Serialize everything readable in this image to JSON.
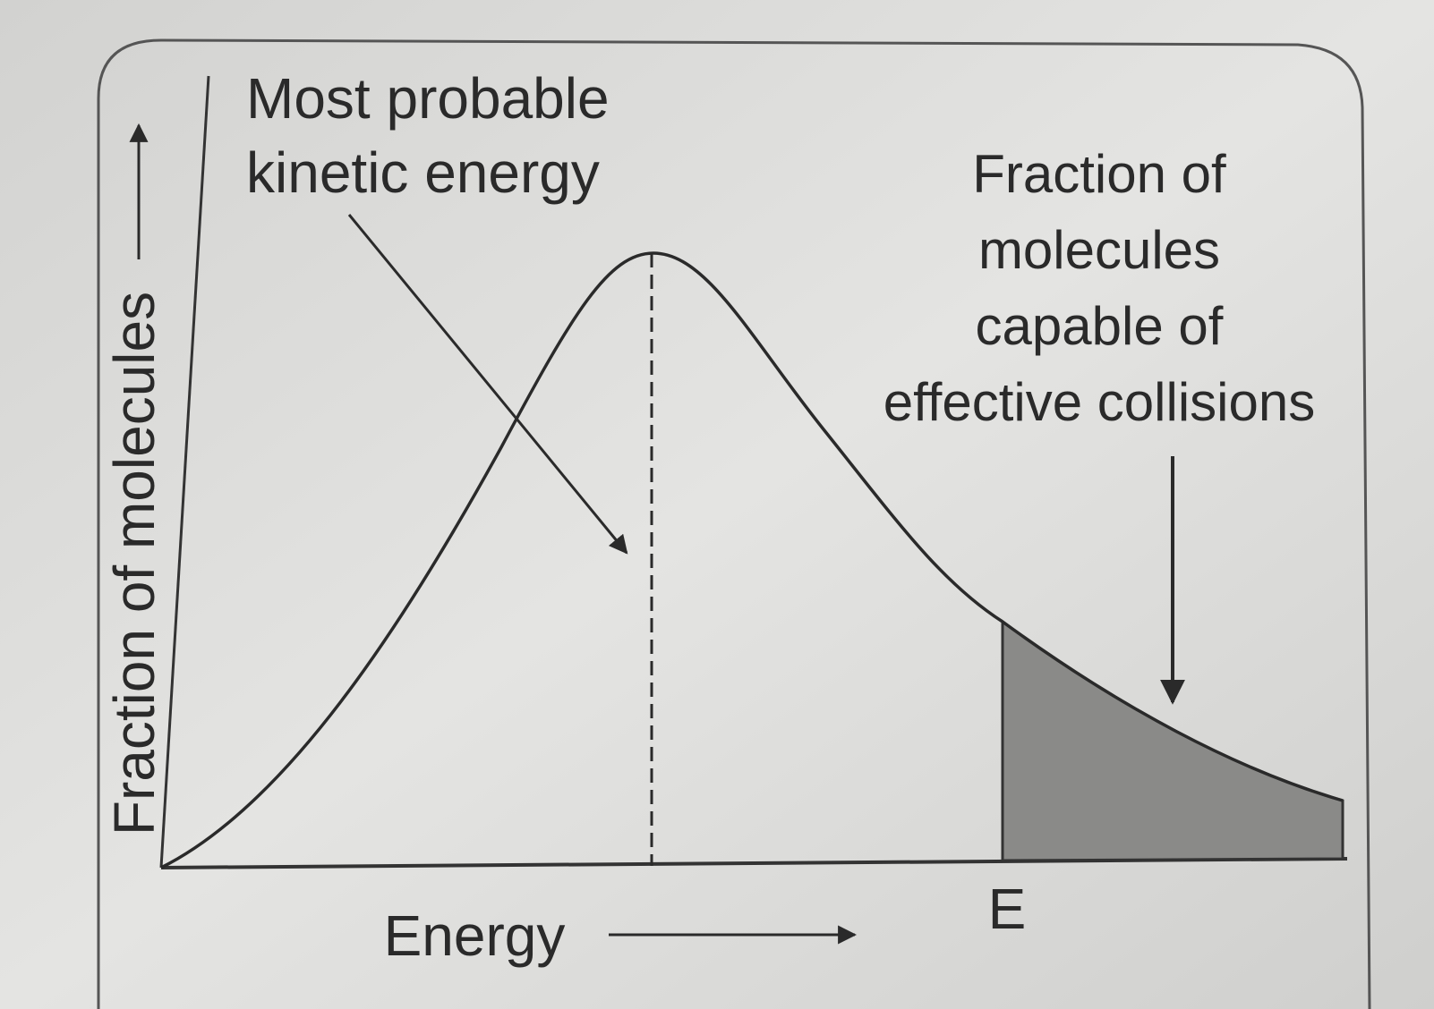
{
  "axes": {
    "y_label": "Fraction of molecules",
    "x_label": "Energy"
  },
  "annotations": {
    "most_probable": {
      "lines": [
        "Most probable",
        "kinetic energy"
      ]
    },
    "effective": {
      "lines": [
        "Fraction of",
        "molecules",
        "capable of",
        "effective collisions"
      ]
    }
  },
  "markers": {
    "threshold": "E"
  }
}
